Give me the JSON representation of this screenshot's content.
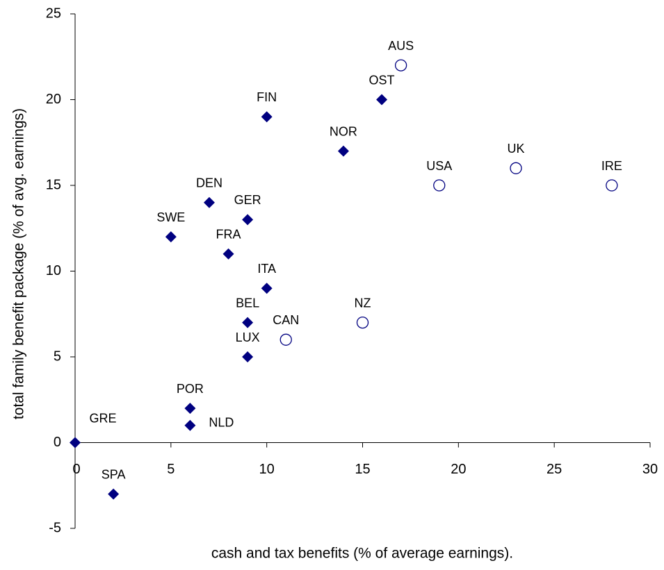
{
  "chart_data": {
    "type": "scatter",
    "x_label": "cash and tax benefits (% of average earnings).",
    "y_label": "total family benefit package (% of avg. earnings)",
    "xlim": [
      0,
      30
    ],
    "xticks": [
      0,
      5,
      10,
      15,
      20,
      25,
      30
    ],
    "ylim": [
      -5,
      25
    ],
    "yticks": [
      -5,
      0,
      5,
      10,
      15,
      20,
      25
    ],
    "series": [
      {
        "marker": "diamond",
        "color": "#000080",
        "labels": [
          "GRE",
          "SPA",
          "POR",
          "NLD",
          "LUX",
          "BEL",
          "ITA",
          "FRA",
          "SWE",
          "DEN",
          "GER",
          "FIN",
          "NOR",
          "OST"
        ],
        "x": [
          0,
          2,
          6,
          6,
          9,
          9,
          10,
          8,
          5,
          7,
          9,
          10,
          14,
          16
        ],
        "y": [
          0,
          -3,
          2,
          1,
          5,
          7,
          9,
          11,
          12,
          14,
          13,
          19,
          17,
          20
        ]
      },
      {
        "marker": "circle",
        "color": "#000080",
        "labels": [
          "CAN",
          "NZ",
          "USA",
          "UK",
          "IRE",
          "AUS"
        ],
        "x": [
          11,
          15,
          19,
          23,
          28,
          17
        ],
        "y": [
          6,
          7,
          15,
          16,
          15,
          22
        ]
      }
    ]
  }
}
